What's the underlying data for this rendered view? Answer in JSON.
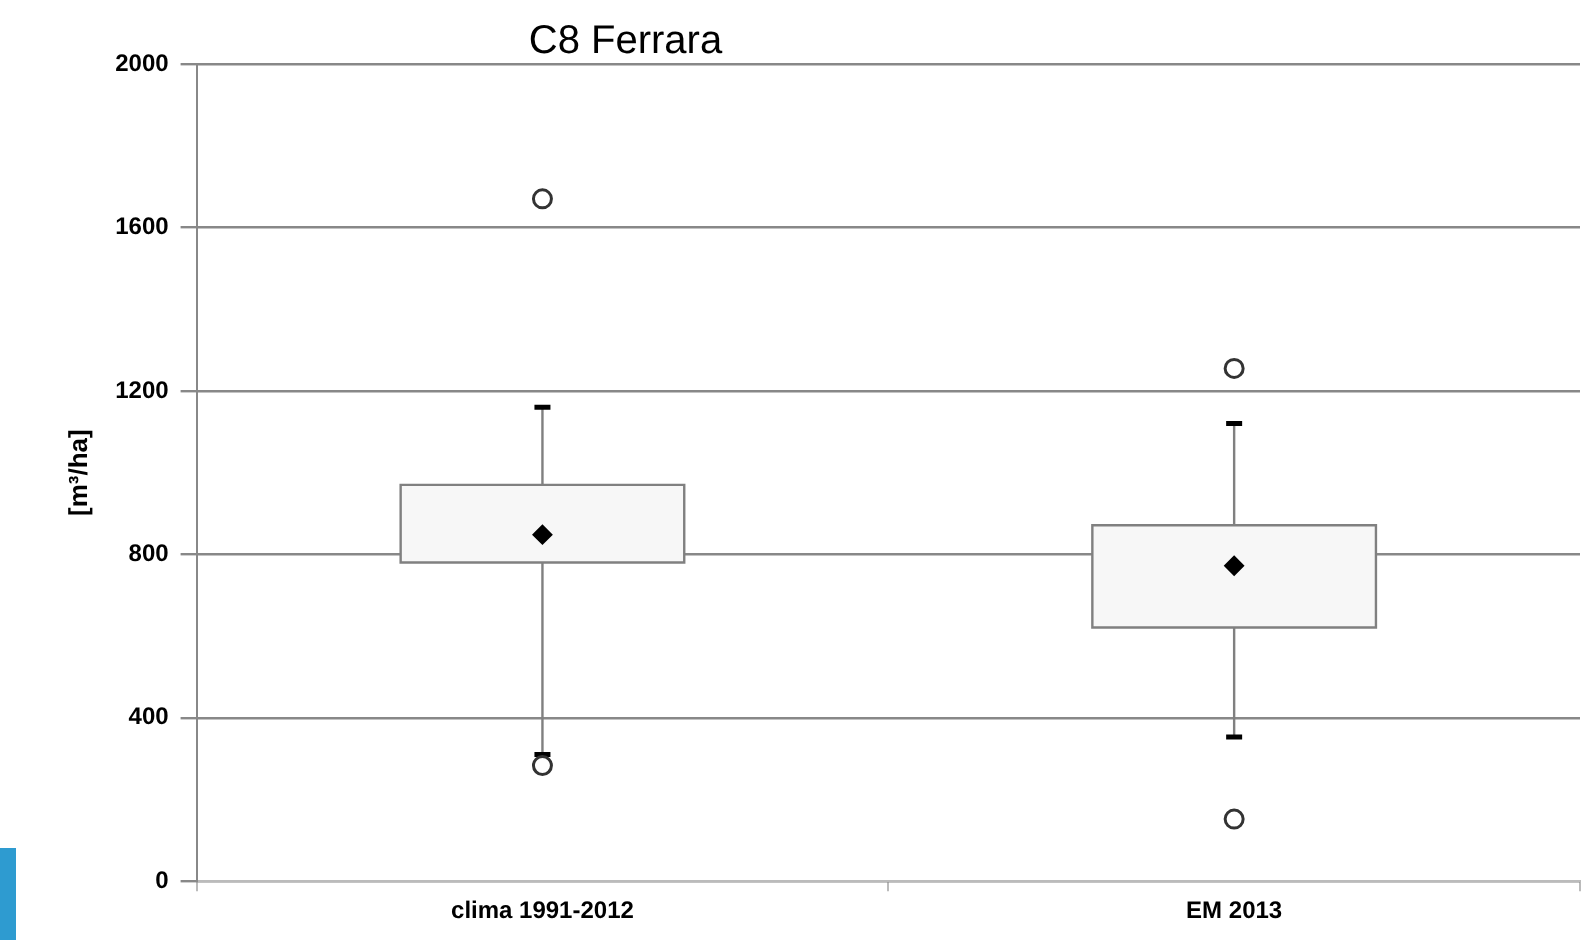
{
  "chart_data": {
    "type": "box",
    "title": "C8 Ferrara",
    "ylabel": "[m³/ha]",
    "categories": [
      "clima 1991-2012",
      "EM 2013"
    ],
    "boxes": [
      {
        "low": 310,
        "q1": 780,
        "q3": 970,
        "high": 1160,
        "mean": 848,
        "outliers": [
          283,
          1670
        ]
      },
      {
        "low": 353,
        "q1": 621,
        "q3": 871,
        "high": 1120,
        "mean": 772,
        "outliers": [
          152,
          1255
        ]
      }
    ],
    "color": "#f7f7f7",
    "ylim": [
      0,
      2000
    ],
    "yticks": [
      0,
      400,
      800,
      1200,
      1600,
      2000
    ],
    "grid": "y",
    "legend": false
  }
}
